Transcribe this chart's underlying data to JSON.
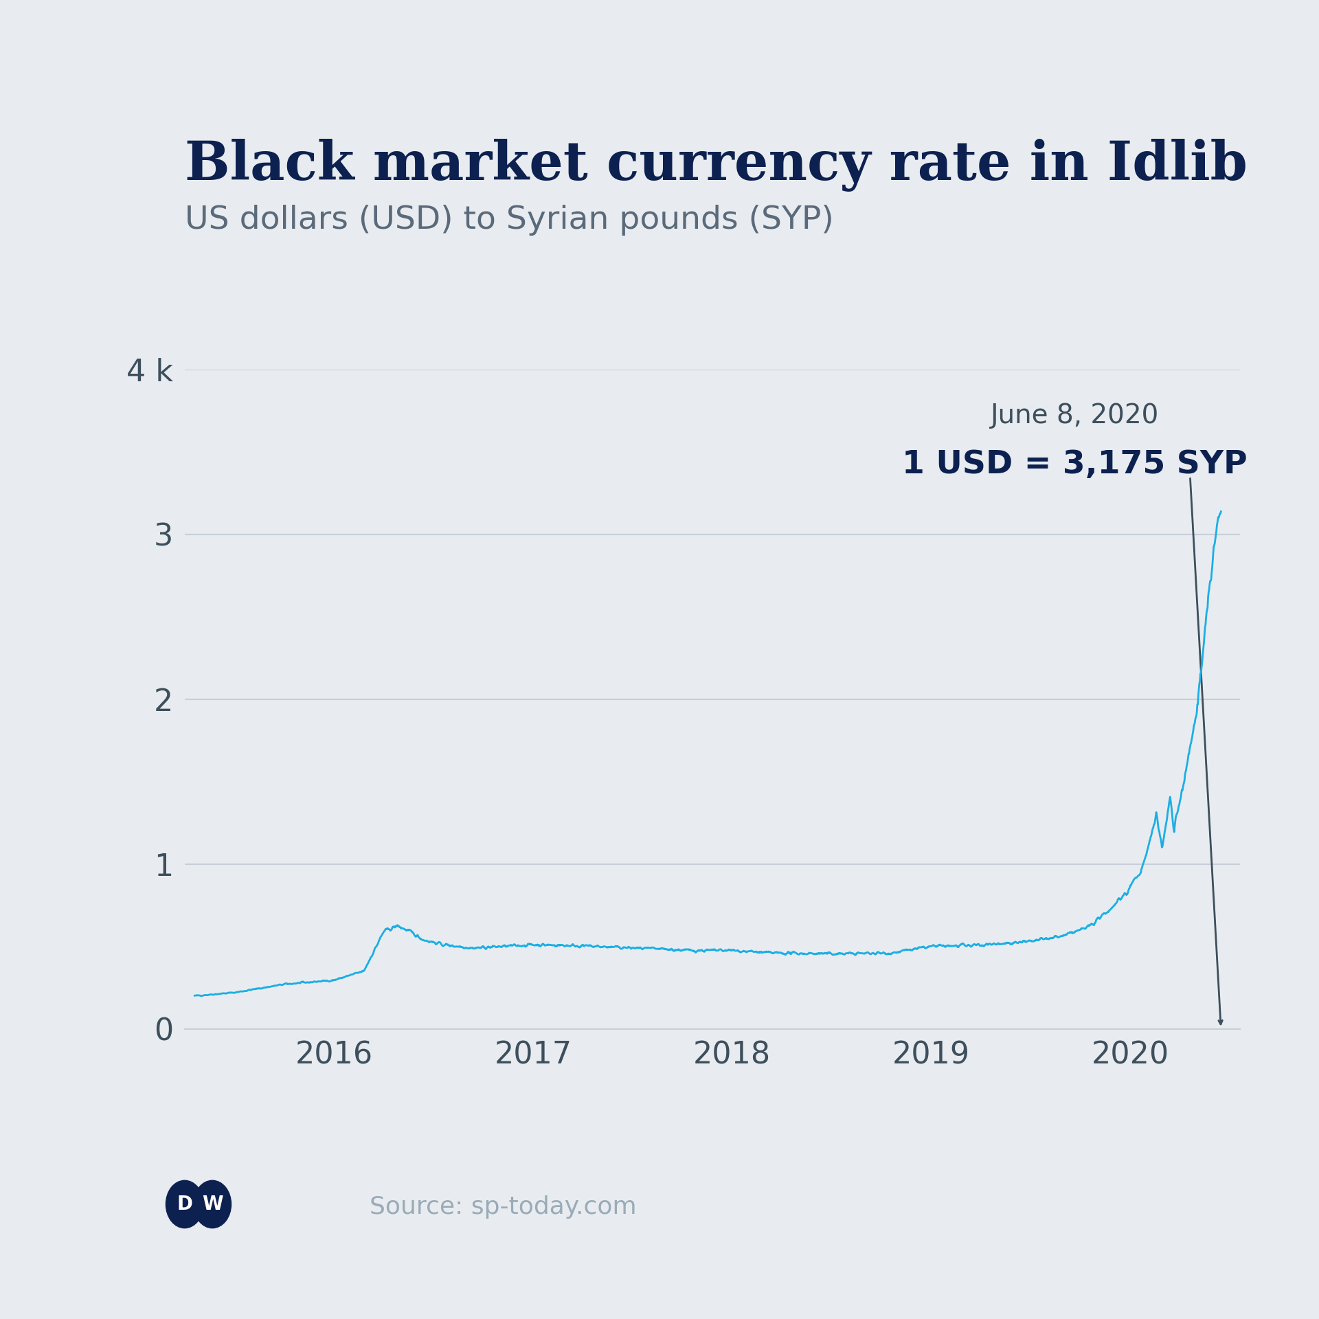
{
  "title": "Black market currency rate in Idlib",
  "subtitle": "US dollars (USD) to Syrian pounds (SYP)",
  "annotation_date": "June 8, 2020",
  "annotation_value": "1 USD = 3,175 SYP",
  "source": "Source: sp-today.com",
  "line_color": "#1caee4",
  "background_color": "#e8ecf0",
  "title_color": "#0d2150",
  "subtitle_color": "#5a6a7a",
  "axis_label_color": "#3d4f5c",
  "grid_color": "#c8cfd8",
  "annotation_color": "#3d4f5c",
  "ylim_max": 4000,
  "yticks": [
    0,
    1000,
    2000,
    3000,
    4000
  ],
  "ytick_labels": [
    "0",
    "1",
    "2",
    "3",
    "4 k"
  ],
  "x_start_year": 2015.25,
  "x_end_year": 2020.55,
  "x_tick_years": [
    2016,
    2017,
    2018,
    2019,
    2020
  ]
}
